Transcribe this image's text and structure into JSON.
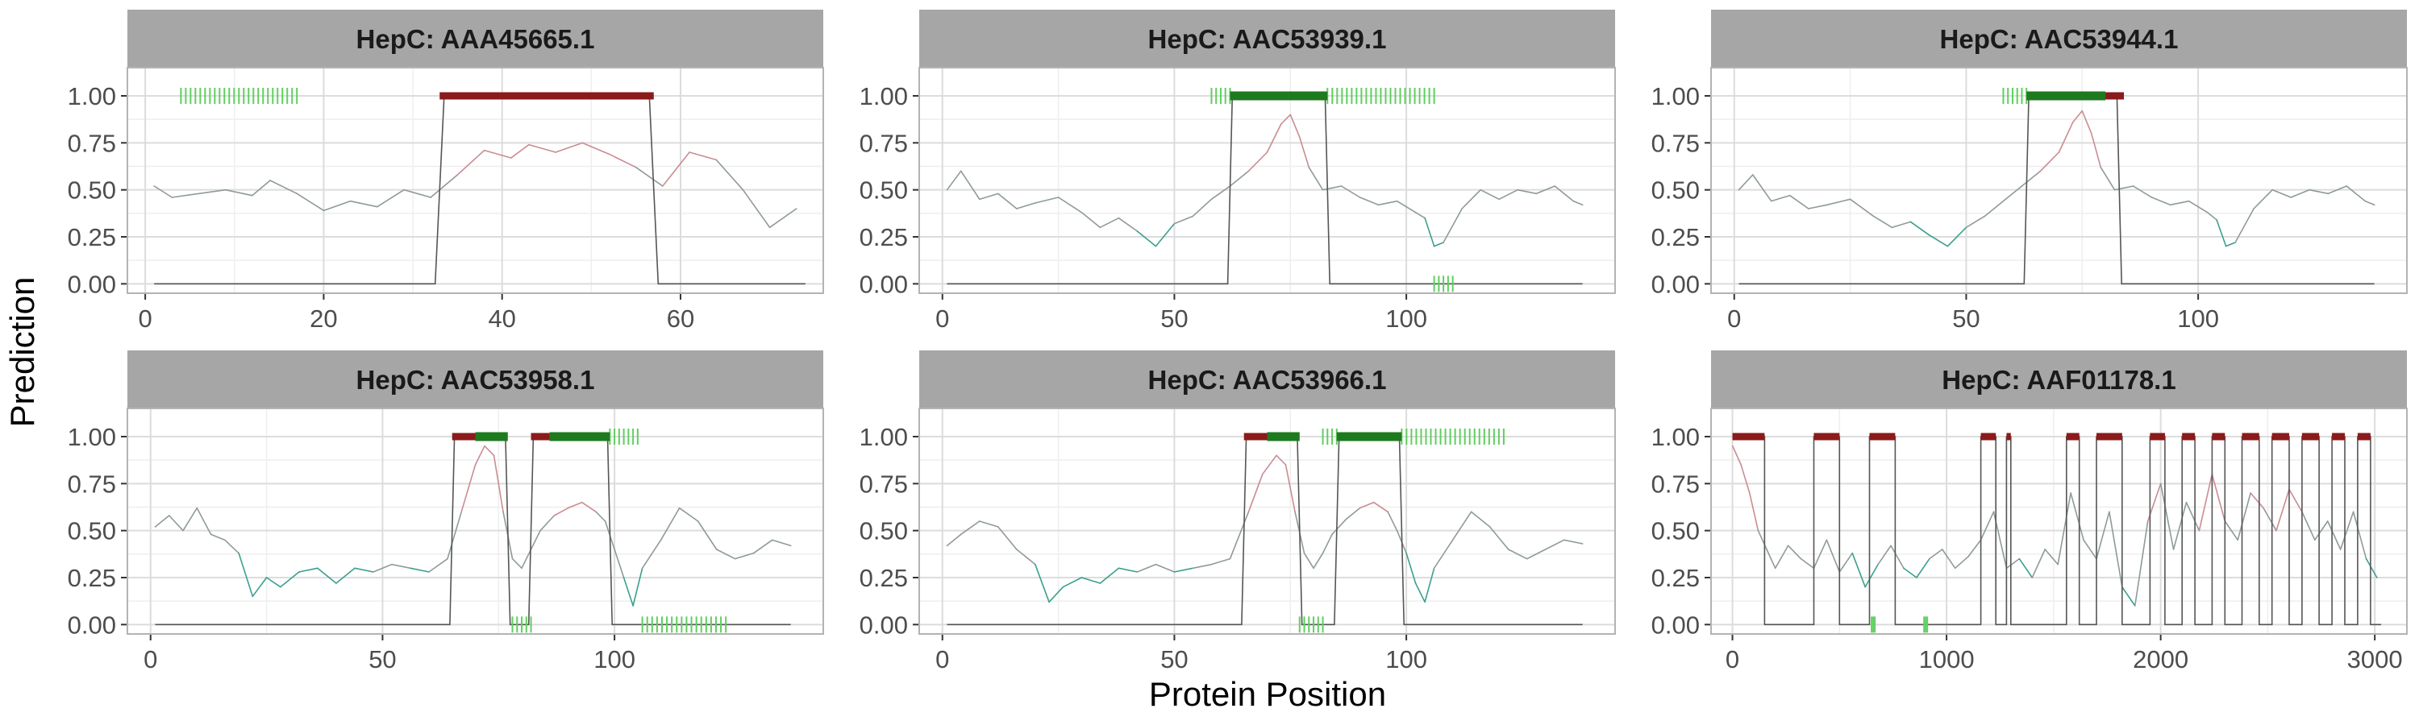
{
  "figure": {
    "xlabel": "Protein Position",
    "ylabel": "Prediction"
  },
  "colors": {
    "strip_bg": "#a6a6a6",
    "panel_border": "#b3b3b3",
    "grid_major": "#dcdcdc",
    "grid_minor": "#eeeeee",
    "step_line": "#555555",
    "predicted_epitope": "#8b1a1a",
    "known_epitope": "#1e7a1e",
    "known_epitope_light": "#5fcf5f",
    "score_high": "#c98c92",
    "score_mid": "#8f9a9a",
    "score_low": "#3aa08e"
  },
  "chart_data": [
    {
      "type": "line",
      "title": "HepC: AAA45665.1",
      "xlim": [
        -2,
        76
      ],
      "xticks": [
        0,
        20,
        40,
        60
      ],
      "ylim": [
        -0.05,
        1.15
      ],
      "yticks": [
        "0.00",
        "0.25",
        "0.50",
        "0.75",
        "1.00"
      ],
      "grid": true,
      "series": [
        {
          "x": [
            1,
            3,
            6,
            9,
            12,
            14,
            17,
            20,
            23,
            26,
            29,
            32,
            35,
            38,
            41,
            43,
            46,
            49,
            52,
            55,
            58,
            61,
            64,
            67,
            70,
            73
          ],
          "y": [
            0.52,
            0.46,
            0.48,
            0.5,
            0.47,
            0.55,
            0.48,
            0.39,
            0.44,
            0.41,
            0.5,
            0.46,
            0.58,
            0.71,
            0.67,
            0.74,
            0.7,
            0.75,
            0.69,
            0.62,
            0.52,
            0.7,
            0.66,
            0.5,
            0.3,
            0.4
          ]
        },
        {
          "x": [
            1,
            32.5,
            33.5,
            56.5,
            57.5,
            74
          ],
          "y": [
            0,
            0,
            1,
            1,
            0,
            0
          ]
        }
      ],
      "predicted_epitopes": [
        [
          33,
          57
        ]
      ],
      "known_epitopes_dense": [],
      "known_epitopes_light": [
        [
          4,
          17
        ]
      ],
      "known_epitopes_bottom": []
    },
    {
      "type": "line",
      "title": "HepC: AAC53939.1",
      "xlim": [
        -5,
        145
      ],
      "xticks": [
        0,
        50,
        100
      ],
      "ylim": [
        -0.05,
        1.15
      ],
      "yticks": [
        "0.00",
        "0.25",
        "0.50",
        "0.75",
        "1.00"
      ],
      "grid": true,
      "series": [
        {
          "x": [
            1,
            4,
            8,
            12,
            16,
            20,
            25,
            30,
            34,
            38,
            42,
            46,
            50,
            54,
            58,
            62,
            66,
            70,
            73,
            75,
            77,
            79,
            82,
            86,
            90,
            94,
            98,
            102,
            104,
            106,
            108,
            112,
            116,
            120,
            124,
            128,
            132,
            136,
            138
          ],
          "y": [
            0.5,
            0.6,
            0.45,
            0.48,
            0.4,
            0.43,
            0.46,
            0.38,
            0.3,
            0.35,
            0.28,
            0.2,
            0.32,
            0.36,
            0.45,
            0.52,
            0.6,
            0.7,
            0.85,
            0.9,
            0.78,
            0.62,
            0.5,
            0.52,
            0.46,
            0.42,
            0.44,
            0.38,
            0.35,
            0.2,
            0.22,
            0.4,
            0.5,
            0.45,
            0.5,
            0.48,
            0.52,
            0.44,
            0.42
          ]
        },
        {
          "x": [
            1,
            61.5,
            62.5,
            82.5,
            83.5,
            138
          ],
          "y": [
            0,
            0,
            1,
            1,
            0,
            0
          ]
        }
      ],
      "predicted_epitopes": [],
      "known_epitopes_dense": [
        [
          62,
          83
        ]
      ],
      "known_epitopes_light": [
        [
          58,
          62
        ],
        [
          83,
          106
        ]
      ],
      "known_epitopes_bottom": [
        [
          106,
          110
        ]
      ]
    },
    {
      "type": "line",
      "title": "HepC: AAC53944.1",
      "xlim": [
        -5,
        145
      ],
      "xticks": [
        0,
        50,
        100
      ],
      "ylim": [
        -0.05,
        1.15
      ],
      "yticks": [
        "0.00",
        "0.25",
        "0.50",
        "0.75",
        "1.00"
      ],
      "grid": true,
      "series": [
        {
          "x": [
            1,
            4,
            8,
            12,
            16,
            20,
            25,
            30,
            34,
            38,
            42,
            46,
            50,
            54,
            58,
            62,
            66,
            70,
            73,
            75,
            77,
            79,
            82,
            86,
            90,
            94,
            98,
            102,
            104,
            106,
            108,
            112,
            116,
            120,
            124,
            128,
            132,
            136,
            138
          ],
          "y": [
            0.5,
            0.58,
            0.44,
            0.47,
            0.4,
            0.42,
            0.45,
            0.36,
            0.3,
            0.33,
            0.26,
            0.2,
            0.3,
            0.36,
            0.44,
            0.52,
            0.6,
            0.7,
            0.86,
            0.92,
            0.8,
            0.62,
            0.5,
            0.52,
            0.46,
            0.42,
            0.44,
            0.38,
            0.34,
            0.2,
            0.22,
            0.4,
            0.5,
            0.46,
            0.5,
            0.48,
            0.52,
            0.44,
            0.42
          ]
        },
        {
          "x": [
            1,
            62.5,
            63.5,
            82.5,
            83.5,
            138
          ],
          "y": [
            0,
            0,
            1,
            1,
            0,
            0
          ]
        }
      ],
      "predicted_epitopes": [
        [
          80,
          84
        ]
      ],
      "known_epitopes_dense": [
        [
          63,
          80
        ]
      ],
      "known_epitopes_light": [
        [
          58,
          63
        ]
      ],
      "known_epitopes_bottom": []
    },
    {
      "type": "line",
      "title": "HepC: AAC53958.1",
      "xlim": [
        -5,
        145
      ],
      "xticks": [
        0,
        50,
        100
      ],
      "ylim": [
        -0.05,
        1.15
      ],
      "yticks": [
        "0.00",
        "0.25",
        "0.50",
        "0.75",
        "1.00"
      ],
      "grid": true,
      "series": [
        {
          "x": [
            1,
            4,
            7,
            10,
            13,
            16,
            19,
            22,
            25,
            28,
            32,
            36,
            40,
            44,
            48,
            52,
            56,
            60,
            64,
            67,
            70,
            72,
            74,
            76,
            78,
            80,
            82,
            84,
            87,
            90,
            93,
            96,
            98,
            100,
            102,
            104,
            106,
            110,
            114,
            118,
            122,
            126,
            130,
            134,
            138
          ],
          "y": [
            0.52,
            0.58,
            0.5,
            0.62,
            0.48,
            0.45,
            0.38,
            0.15,
            0.25,
            0.2,
            0.28,
            0.3,
            0.22,
            0.3,
            0.28,
            0.32,
            0.3,
            0.28,
            0.35,
            0.6,
            0.85,
            0.95,
            0.9,
            0.6,
            0.35,
            0.3,
            0.4,
            0.5,
            0.58,
            0.62,
            0.65,
            0.6,
            0.55,
            0.4,
            0.25,
            0.1,
            0.3,
            0.45,
            0.62,
            0.55,
            0.4,
            0.35,
            0.38,
            0.45,
            0.42
          ]
        },
        {
          "x": [
            1,
            64.5,
            65.5,
            76.5,
            77.5,
            81.5,
            82.5,
            98.5,
            99.5,
            138
          ],
          "y": [
            0,
            0,
            1,
            1,
            0,
            0,
            1,
            1,
            0,
            0
          ]
        }
      ],
      "predicted_epitopes": [
        [
          65,
          70
        ],
        [
          82,
          86
        ]
      ],
      "known_epitopes_dense": [
        [
          70,
          77
        ],
        [
          86,
          99
        ]
      ],
      "known_epitopes_light": [
        [
          99,
          105
        ]
      ],
      "known_epitopes_bottom": [
        [
          78,
          82
        ],
        [
          106,
          124
        ]
      ]
    },
    {
      "type": "line",
      "title": "HepC: AAC53966.1",
      "xlim": [
        -5,
        145
      ],
      "xticks": [
        0,
        50,
        100
      ],
      "ylim": [
        -0.05,
        1.15
      ],
      "yticks": [
        "0.00",
        "0.25",
        "0.50",
        "0.75",
        "1.00"
      ],
      "grid": true,
      "series": [
        {
          "x": [
            1,
            4,
            8,
            12,
            16,
            20,
            23,
            26,
            30,
            34,
            38,
            42,
            46,
            50,
            54,
            58,
            62,
            66,
            69,
            72,
            74,
            76,
            78,
            80,
            82,
            84,
            87,
            90,
            93,
            96,
            98,
            100,
            102,
            104,
            106,
            110,
            114,
            118,
            122,
            126,
            130,
            134,
            138
          ],
          "y": [
            0.42,
            0.48,
            0.55,
            0.52,
            0.4,
            0.32,
            0.12,
            0.2,
            0.25,
            0.22,
            0.3,
            0.28,
            0.32,
            0.28,
            0.3,
            0.32,
            0.35,
            0.6,
            0.8,
            0.9,
            0.85,
            0.6,
            0.38,
            0.3,
            0.38,
            0.48,
            0.56,
            0.62,
            0.65,
            0.6,
            0.5,
            0.38,
            0.22,
            0.12,
            0.3,
            0.45,
            0.6,
            0.52,
            0.4,
            0.35,
            0.4,
            0.45,
            0.43
          ]
        },
        {
          "x": [
            1,
            64.5,
            65.5,
            76.5,
            77.5,
            84.5,
            85.5,
            98.5,
            99.5,
            138
          ],
          "y": [
            0,
            0,
            1,
            1,
            0,
            0,
            1,
            1,
            0,
            0
          ]
        }
      ],
      "predicted_epitopes": [
        [
          65,
          70
        ]
      ],
      "known_epitopes_dense": [
        [
          70,
          77
        ],
        [
          85,
          99
        ]
      ],
      "known_epitopes_light": [
        [
          82,
          85
        ],
        [
          99,
          121
        ]
      ],
      "known_epitopes_bottom": [
        [
          77,
          82
        ]
      ]
    },
    {
      "type": "line",
      "title": "HepC: AAF01178.1",
      "xlim": [
        -100,
        3150
      ],
      "xticks": [
        0,
        1000,
        2000,
        3000
      ],
      "ylim": [
        -0.05,
        1.15
      ],
      "yticks": [
        "0.00",
        "0.25",
        "0.50",
        "0.75",
        "1.00"
      ],
      "grid": true,
      "series": [
        {
          "x": [
            1,
            40,
            80,
            120,
            160,
            200,
            260,
            320,
            380,
            440,
            500,
            560,
            620,
            680,
            740,
            800,
            860,
            920,
            980,
            1040,
            1100,
            1160,
            1220,
            1280,
            1340,
            1400,
            1460,
            1520,
            1580,
            1640,
            1700,
            1760,
            1820,
            1880,
            1940,
            2000,
            2060,
            2120,
            2180,
            2240,
            2300,
            2360,
            2420,
            2480,
            2540,
            2600,
            2660,
            2720,
            2780,
            2840,
            2900,
            2960,
            3010
          ],
          "y": [
            0.95,
            0.85,
            0.7,
            0.5,
            0.4,
            0.3,
            0.42,
            0.35,
            0.3,
            0.45,
            0.28,
            0.38,
            0.2,
            0.32,
            0.42,
            0.3,
            0.25,
            0.35,
            0.4,
            0.3,
            0.36,
            0.45,
            0.6,
            0.3,
            0.35,
            0.25,
            0.4,
            0.32,
            0.7,
            0.45,
            0.35,
            0.6,
            0.2,
            0.1,
            0.55,
            0.75,
            0.4,
            0.65,
            0.5,
            0.8,
            0.55,
            0.45,
            0.7,
            0.62,
            0.5,
            0.72,
            0.6,
            0.45,
            0.55,
            0.4,
            0.6,
            0.35,
            0.25
          ]
        },
        {
          "x": [
            0,
            150,
            150,
            380,
            380,
            500,
            500,
            640,
            640,
            760,
            760,
            1160,
            1160,
            1230,
            1230,
            1280,
            1280,
            1300,
            1300,
            1560,
            1560,
            1620,
            1620,
            1700,
            1700,
            1820,
            1820,
            1950,
            1950,
            2020,
            2020,
            2100,
            2100,
            2160,
            2160,
            2240,
            2240,
            2300,
            2300,
            2380,
            2380,
            2460,
            2460,
            2520,
            2520,
            2600,
            2600,
            2660,
            2660,
            2740,
            2740,
            2800,
            2800,
            2860,
            2860,
            2920,
            2920,
            2980,
            2980,
            3030
          ],
          "y": [
            1,
            1,
            0,
            0,
            1,
            1,
            0,
            0,
            1,
            1,
            0,
            0,
            1,
            1,
            0,
            0,
            1,
            1,
            0,
            0,
            1,
            1,
            0,
            0,
            1,
            1,
            0,
            0,
            1,
            1,
            0,
            0,
            1,
            1,
            0,
            0,
            1,
            1,
            0,
            0,
            1,
            1,
            0,
            0,
            1,
            1,
            0,
            0,
            1,
            1,
            0,
            0,
            1,
            1,
            0,
            0,
            1,
            1,
            0,
            0
          ]
        }
      ],
      "predicted_epitopes": [
        [
          0,
          150
        ],
        [
          380,
          500
        ],
        [
          640,
          760
        ],
        [
          1160,
          1230
        ],
        [
          1280,
          1300
        ],
        [
          1560,
          1620
        ],
        [
          1700,
          1820
        ],
        [
          1950,
          2020
        ],
        [
          2100,
          2160
        ],
        [
          2240,
          2300
        ],
        [
          2380,
          2460
        ],
        [
          2520,
          2600
        ],
        [
          2660,
          2740
        ],
        [
          2800,
          2860
        ],
        [
          2920,
          2980
        ]
      ],
      "known_epitopes_dense": [],
      "known_epitopes_light": [],
      "known_epitopes_bottom": [
        [
          650,
          665
        ],
        [
          895,
          910
        ]
      ]
    }
  ]
}
